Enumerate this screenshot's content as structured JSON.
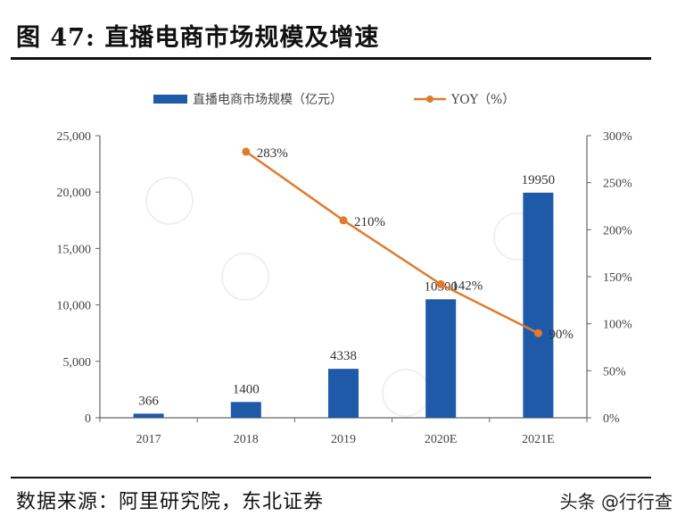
{
  "figure": {
    "title": "图 47:  直播电商市场规模及增速",
    "source": "数据来源：阿里研究院，东北证券",
    "watermark": "头条 @行行查"
  },
  "colors": {
    "bar": "#1f5aa8",
    "line": "#e07b2e",
    "axis": "#666666",
    "rule": "#111111"
  },
  "chart_data": {
    "type": "bar",
    "title": "",
    "categories": [
      "2017",
      "2018",
      "2019",
      "2020E",
      "2021E"
    ],
    "series": [
      {
        "name": "直播电商市场规模（亿元）",
        "type": "bar",
        "axis": "left",
        "values": [
          366,
          1400,
          4338,
          10500,
          19950
        ],
        "labels": [
          "366",
          "1400",
          "4338",
          "10500",
          "19950"
        ]
      },
      {
        "name": "YOY（%）",
        "type": "line",
        "axis": "right",
        "x": [
          "2018",
          "2019",
          "2020E",
          "2021E"
        ],
        "values": [
          283,
          210,
          142,
          90
        ],
        "labels": [
          "283%",
          "210%",
          "142%",
          "90%"
        ]
      }
    ],
    "y_left": {
      "ylim": [
        0,
        25000
      ],
      "ticks": [
        "0",
        "5,000",
        "10,000",
        "15,000",
        "20,000",
        "25,000"
      ]
    },
    "y_right": {
      "ylim": [
        0,
        300
      ],
      "ticks": [
        "0%",
        "50%",
        "100%",
        "150%",
        "200%",
        "250%",
        "300%"
      ]
    },
    "legend": {
      "placement": "top-center"
    },
    "grid": false
  }
}
